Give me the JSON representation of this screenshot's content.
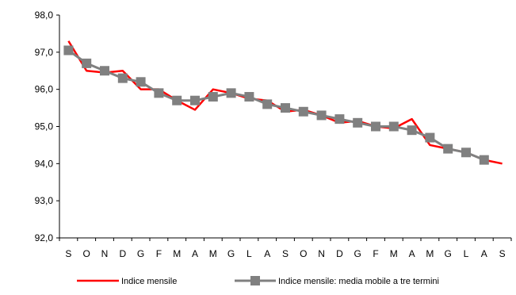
{
  "chart_data": {
    "type": "line",
    "title": "",
    "xlabel": "",
    "ylabel": "",
    "categories": [
      "S",
      "O",
      "N",
      "D",
      "G",
      "F",
      "M",
      "A",
      "M",
      "G",
      "L",
      "A",
      "S",
      "O",
      "N",
      "D",
      "G",
      "F",
      "M",
      "A",
      "M",
      "G",
      "L",
      "A",
      "S"
    ],
    "ylim": [
      92.0,
      98.0
    ],
    "yticks": [
      "92,0",
      "93,0",
      "94,0",
      "95,0",
      "96,0",
      "97,0",
      "98,0"
    ],
    "grid": false,
    "legend_position": "bottom",
    "series": [
      {
        "name": "Indice mensile",
        "color": "#ff0000",
        "marker": "none",
        "values": [
          97.3,
          96.5,
          96.45,
          96.5,
          96.0,
          96.0,
          95.7,
          95.45,
          96.0,
          95.9,
          95.75,
          95.7,
          95.4,
          95.45,
          95.3,
          95.1,
          95.15,
          95.0,
          94.95,
          95.2,
          94.5,
          94.4,
          94.3,
          94.1,
          94.0
        ]
      },
      {
        "name": "Indice mensile: media mobile a tre termini",
        "color": "#808080",
        "marker": "square",
        "values": [
          97.05,
          96.7,
          96.5,
          96.3,
          96.2,
          95.9,
          95.7,
          95.7,
          95.8,
          95.9,
          95.8,
          95.6,
          95.5,
          95.4,
          95.3,
          95.2,
          95.1,
          95.0,
          95.0,
          94.9,
          94.7,
          94.4,
          94.3,
          94.1,
          null
        ]
      }
    ]
  }
}
